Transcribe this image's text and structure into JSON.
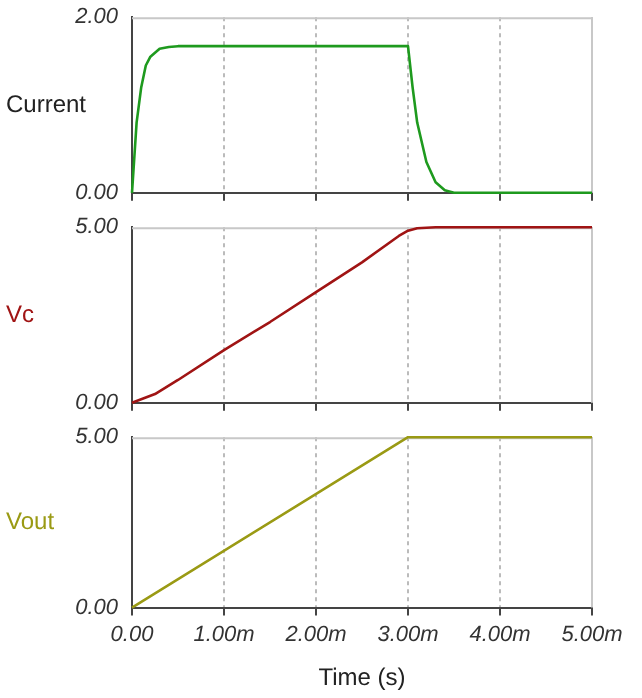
{
  "chart_data": [
    {
      "type": "line",
      "ylabel": "Current",
      "xlim": [
        0,
        5
      ],
      "xticks": [
        {
          "value": 0,
          "label": null
        },
        {
          "value": 1,
          "label": null
        },
        {
          "value": 2,
          "label": null
        },
        {
          "value": 3,
          "label": null
        },
        {
          "value": 4,
          "label": null
        },
        {
          "value": 5,
          "label": null
        }
      ],
      "ylim": [
        0,
        2
      ],
      "yticks": [
        {
          "value": 0,
          "label": "0.00"
        },
        {
          "value": 2,
          "label": "2.00"
        }
      ],
      "grid": "x",
      "tick_labels": "y",
      "legend": false,
      "marker": "none",
      "series": [
        {
          "color": "#1e9a1e",
          "x": [
            0,
            0.05,
            0.1,
            0.15,
            0.2,
            0.3,
            0.4,
            0.5,
            3,
            3.05,
            3.1,
            3.2,
            3.3,
            3.4,
            3.5,
            5
          ],
          "values": [
            0,
            0.8,
            1.2,
            1.45,
            1.55,
            1.64,
            1.66,
            1.67,
            1.67,
            1.2,
            0.8,
            0.35,
            0.12,
            0.03,
            0,
            0
          ]
        }
      ]
    },
    {
      "type": "line",
      "ylabel": "Vc",
      "xlim": [
        0,
        5
      ],
      "xticks": [
        {
          "value": 0,
          "label": null
        },
        {
          "value": 1,
          "label": null
        },
        {
          "value": 2,
          "label": null
        },
        {
          "value": 3,
          "label": null
        },
        {
          "value": 4,
          "label": null
        },
        {
          "value": 5,
          "label": null
        }
      ],
      "ylim": [
        0,
        5
      ],
      "yticks": [
        {
          "value": 0,
          "label": "0.00"
        },
        {
          "value": 5,
          "label": "5.00"
        }
      ],
      "grid": "x",
      "tick_labels": "y",
      "legend": false,
      "marker": "none",
      "series": [
        {
          "color": "#a01414",
          "x": [
            0,
            0.25,
            0.5,
            1,
            1.5,
            2,
            2.5,
            2.9,
            3,
            3.1,
            3.3,
            5
          ],
          "values": [
            0,
            0.25,
            0.65,
            1.5,
            2.3,
            3.15,
            4.0,
            4.75,
            4.9,
            4.97,
            5,
            5
          ]
        }
      ]
    },
    {
      "type": "line",
      "ylabel": "Vout",
      "xlabel": "Time (s)",
      "xlim": [
        0,
        5
      ],
      "xticks": [
        {
          "value": 0,
          "label": "0.00"
        },
        {
          "value": 1,
          "label": "1.00m"
        },
        {
          "value": 2,
          "label": "2.00m"
        },
        {
          "value": 3,
          "label": "3.00m"
        },
        {
          "value": 4,
          "label": "4.00m"
        },
        {
          "value": 5,
          "label": "5.00m"
        }
      ],
      "ylim": [
        0,
        5
      ],
      "yticks": [
        {
          "value": 0,
          "label": "0.00"
        },
        {
          "value": 5,
          "label": "5.00"
        }
      ],
      "grid": "x",
      "legend": false,
      "marker": "none",
      "series": [
        {
          "color": "#9a9a14",
          "x": [
            0,
            3,
            5
          ],
          "values": [
            0,
            5,
            5
          ]
        }
      ]
    }
  ]
}
